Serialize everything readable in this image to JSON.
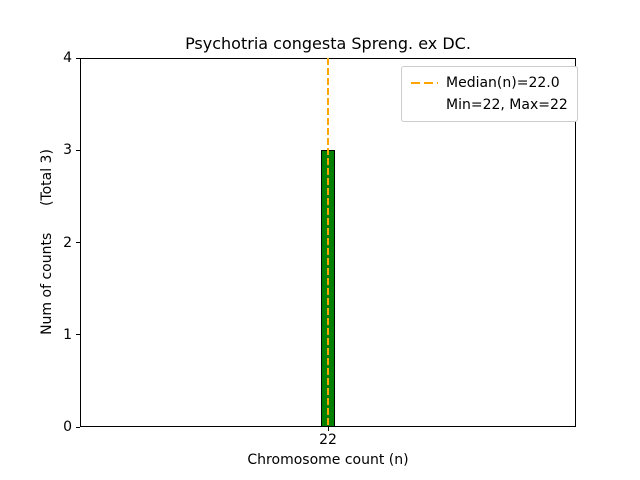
{
  "chart_data": {
    "type": "bar",
    "title": "Psychotria congesta Spreng. ex DC.",
    "xlabel": "Chromosome count (n)",
    "ylabel": "Num of counts      (Total 3)",
    "categories": [
      "22"
    ],
    "values": [
      3
    ],
    "total_counts": 3,
    "ylim": [
      0,
      4
    ],
    "yticks": [
      "0",
      "1",
      "2",
      "3",
      "4"
    ],
    "xticks": [
      "22"
    ],
    "grid": false,
    "bar_color": "#008000",
    "bar_edge_color": "#000000",
    "median_line": {
      "x": 22.0,
      "color": "#FFA500",
      "style": "dashed"
    },
    "legend": {
      "position": "upper-right",
      "entries": [
        {
          "label": "Median(n)=22.0",
          "handle": "orange-dashed-line",
          "handle_color": "#FFA500"
        },
        {
          "label": "Min=22, Max=22",
          "handle": "none",
          "handle_color": ""
        }
      ]
    }
  }
}
